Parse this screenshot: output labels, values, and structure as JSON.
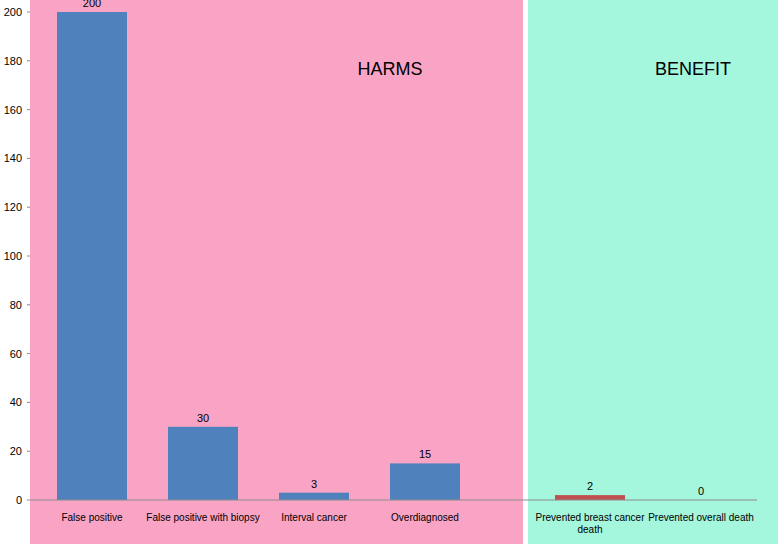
{
  "chart_data": {
    "type": "bar",
    "categories": [
      "False positive",
      "False positive with biopsy",
      "Interval cancer",
      "Overdiagnosed",
      "Prevented breast cancer death",
      "Prevented overall death"
    ],
    "values": [
      200,
      30,
      3,
      15,
      2,
      0
    ],
    "colors": [
      "#4f81bd",
      "#4f81bd",
      "#4f81bd",
      "#4f81bd",
      "#c0504d",
      "#c0504d"
    ],
    "annotations": [
      "HARMS",
      "BENEFIT"
    ],
    "ylim": [
      0,
      200
    ],
    "yticks": [
      0,
      20,
      40,
      60,
      80,
      100,
      120,
      140,
      160,
      180,
      200
    ],
    "data_labels": true,
    "grid": false
  }
}
